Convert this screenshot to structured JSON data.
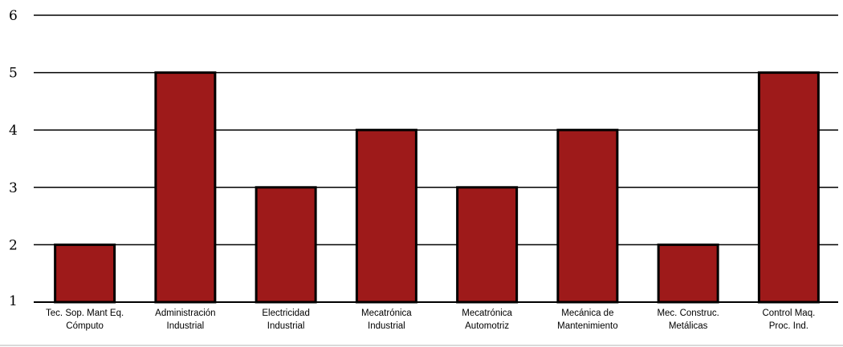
{
  "chart_data": {
    "type": "bar",
    "title": "",
    "xlabel": "",
    "ylabel": "",
    "ylim": [
      1,
      6
    ],
    "yticks": [
      "1",
      "2",
      "3",
      "4",
      "5",
      "6"
    ],
    "grid": true,
    "bar_color": "#9e1a1a",
    "categories": [
      [
        "Tec. Sop. Mant Eq.",
        "Cómputo"
      ],
      [
        "Administración",
        "Industrial"
      ],
      [
        "Electricidad",
        "Industrial"
      ],
      [
        "Mecatrónica",
        "Industrial"
      ],
      [
        "Mecatrónica",
        "Automotriz"
      ],
      [
        "Mecánica de",
        "Mantenimiento"
      ],
      [
        "Mec. Construc.",
        "Metálicas"
      ],
      [
        "Control Maq.",
        "Proc. Ind."
      ]
    ],
    "values": [
      2,
      5,
      3,
      4,
      3,
      4,
      2,
      5
    ]
  }
}
